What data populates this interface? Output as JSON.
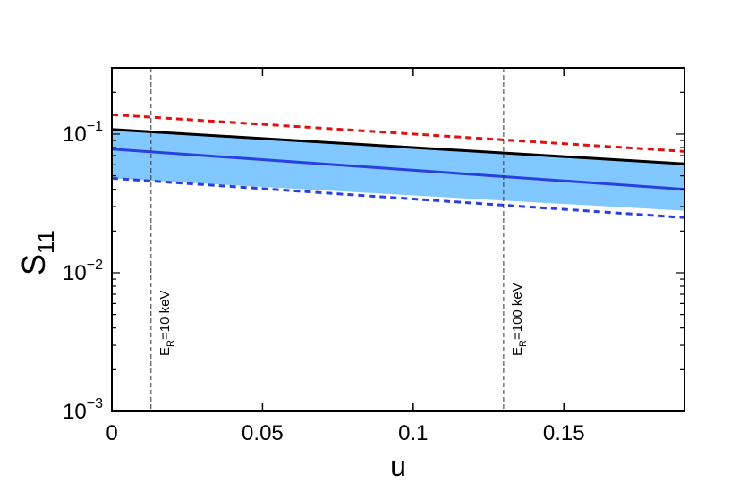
{
  "chart_data": {
    "type": "line",
    "xlabel": "u",
    "ylabel_main": "S",
    "ylabel_sub": "11",
    "xlim": [
      0,
      0.19
    ],
    "ylim": [
      0.001,
      0.3
    ],
    "yscale": "log",
    "grid": false,
    "x_ticks": [
      {
        "value": 0,
        "label": "0"
      },
      {
        "value": 0.05,
        "label": "0.05"
      },
      {
        "value": 0.1,
        "label": "0.1"
      },
      {
        "value": 0.15,
        "label": "0.15"
      }
    ],
    "y_ticks": [
      {
        "value": 0.001,
        "base": "10",
        "exp": "−3"
      },
      {
        "value": 0.01,
        "base": "10",
        "exp": "−2"
      },
      {
        "value": 0.1,
        "base": "10",
        "exp": "−1"
      }
    ],
    "band": {
      "color": "#80c8ff",
      "x": [
        0,
        0.19
      ],
      "upper": [
        0.108,
        0.061
      ],
      "lower": [
        0.048,
        0.028
      ]
    },
    "series": [
      {
        "color": "#000000",
        "dash": "solid",
        "x": [
          0,
          0.19
        ],
        "y": [
          0.108,
          0.061
        ]
      },
      {
        "color": "#2a3fe0",
        "dash": "solid",
        "x": [
          0,
          0.19
        ],
        "y": [
          0.078,
          0.04
        ]
      },
      {
        "color": "#e01010",
        "dash": "dashed",
        "x": [
          0,
          0.19
        ],
        "y": [
          0.138,
          0.075
        ]
      },
      {
        "color": "#2a3fe0",
        "dash": "dashed",
        "x": [
          0,
          0.19
        ],
        "y": [
          0.048,
          0.025
        ]
      }
    ],
    "vlines": [
      {
        "x": 0.013,
        "label_main": "E",
        "label_sub": "R",
        "label_rest": "=10 keV"
      },
      {
        "x": 0.13,
        "label_main": "E",
        "label_sub": "R",
        "label_rest": "=100 keV"
      }
    ]
  }
}
